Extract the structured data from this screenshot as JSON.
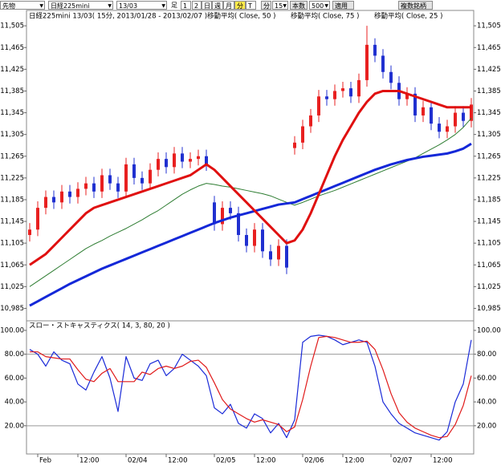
{
  "toolbar": {
    "items": [
      "先物",
      "日経225mini",
      "13/03",
      "足",
      "1",
      "2",
      "日",
      "週",
      "月",
      "分",
      "T",
      "分",
      "15",
      "本数",
      "500",
      "適用",
      "複数銘柄"
    ]
  },
  "chart_data": [
    {
      "type": "candlestick",
      "title": "日経225mini 13/03( 15分, 2013/01/28 - 2013/02/07 )",
      "open": [
        11120,
        11130,
        11170,
        11190,
        11180,
        11200,
        11190,
        11205,
        11215,
        11200,
        11230,
        11215,
        11200,
        11250,
        11225,
        11215,
        11240,
        11260,
        11245,
        11270,
        11255,
        11260,
        11265,
        11180,
        11140,
        11170,
        11160,
        11120,
        11100,
        11130,
        11090,
        11075,
        11100,
        11280,
        11290,
        11320,
        11340,
        11375,
        11370,
        11385,
        11390,
        11375,
        11405,
        11470,
        11450,
        11420,
        11400,
        11370,
        11380,
        11340,
        11355,
        11325,
        11310,
        11320,
        11345,
        11330
      ],
      "high": [
        11142,
        11182,
        11202,
        11202,
        11212,
        11212,
        11217,
        11227,
        11227,
        11242,
        11242,
        11227,
        11262,
        11262,
        11237,
        11252,
        11272,
        11272,
        11282,
        11282,
        11272,
        11277,
        11277,
        11192,
        11182,
        11182,
        11172,
        11132,
        11142,
        11142,
        11102,
        11112,
        11112,
        11302,
        11332,
        11352,
        11387,
        11387,
        11397,
        11402,
        11402,
        11417,
        11505,
        11482,
        11462,
        11432,
        11412,
        11392,
        11392,
        11367,
        11367,
        11337,
        11332,
        11357,
        11357,
        11372
      ],
      "low": [
        11108,
        11118,
        11158,
        11168,
        11168,
        11178,
        11178,
        11193,
        11188,
        11188,
        11203,
        11188,
        11188,
        11213,
        11203,
        11203,
        11228,
        11233,
        11233,
        11243,
        11243,
        11248,
        11238,
        11128,
        11128,
        11148,
        11108,
        11088,
        11088,
        11078,
        11063,
        11063,
        11048,
        11268,
        11278,
        11308,
        11328,
        11358,
        11358,
        11373,
        11363,
        11363,
        11393,
        11438,
        11408,
        11388,
        11358,
        11358,
        11328,
        11328,
        11313,
        11298,
        11298,
        11308,
        11318,
        11318
      ],
      "close": [
        11130,
        11170,
        11190,
        11180,
        11200,
        11190,
        11205,
        11215,
        11200,
        11230,
        11215,
        11200,
        11250,
        11225,
        11215,
        11240,
        11260,
        11245,
        11270,
        11255,
        11260,
        11265,
        11250,
        11140,
        11170,
        11160,
        11120,
        11100,
        11130,
        11090,
        11075,
        11100,
        11060,
        11290,
        11320,
        11340,
        11375,
        11370,
        11385,
        11390,
        11375,
        11405,
        11470,
        11450,
        11420,
        11400,
        11370,
        11380,
        11340,
        11355,
        11325,
        11310,
        11320,
        11345,
        11330,
        11360
      ],
      "up_color": "#e82020",
      "down_color": "#2030d0",
      "series": [
        {
          "name": "移動平均( Close, 50 )",
          "color": "#2e7d32",
          "width": 1,
          "values": [
            11025,
            11035,
            11045,
            11055,
            11065,
            11075,
            11085,
            11095,
            11103,
            11110,
            11118,
            11125,
            11132,
            11140,
            11148,
            11157,
            11165,
            11175,
            11185,
            11195,
            11203,
            11210,
            11215,
            11213,
            11210,
            11208,
            11205,
            11202,
            11199,
            11196,
            11192,
            11186,
            11180,
            11175,
            11180,
            11186,
            11192,
            11197,
            11202,
            11208,
            11214,
            11220,
            11226,
            11232,
            11238,
            11244,
            11250,
            11256,
            11262,
            11270,
            11278,
            11286,
            11295,
            11305,
            11318,
            11335
          ]
        },
        {
          "name": "移動平均( Close, 75 )",
          "color": "#1428d8",
          "width": 3,
          "values": [
            10990,
            10998,
            11006,
            11014,
            11022,
            11030,
            11037,
            11044,
            11051,
            11058,
            11064,
            11070,
            11076,
            11082,
            11088,
            11094,
            11100,
            11106,
            11112,
            11118,
            11124,
            11130,
            11136,
            11142,
            11147,
            11152,
            11156,
            11160,
            11164,
            11168,
            11172,
            11176,
            11178,
            11180,
            11186,
            11192,
            11198,
            11204,
            11210,
            11216,
            11222,
            11228,
            11234,
            11240,
            11245,
            11250,
            11254,
            11258,
            11261,
            11264,
            11266,
            11268,
            11270,
            11274,
            11279,
            11288
          ]
        },
        {
          "name": "移動平均( Close, 25 )",
          "color": "#e01010",
          "width": 3,
          "values": [
            11065,
            11075,
            11085,
            11100,
            11115,
            11130,
            11145,
            11160,
            11170,
            11175,
            11180,
            11185,
            11190,
            11195,
            11200,
            11205,
            11210,
            11215,
            11220,
            11225,
            11230,
            11240,
            11250,
            11240,
            11225,
            11210,
            11195,
            11180,
            11165,
            11150,
            11135,
            11120,
            11105,
            11110,
            11130,
            11160,
            11195,
            11230,
            11265,
            11295,
            11320,
            11345,
            11365,
            11380,
            11385,
            11385,
            11385,
            11380,
            11375,
            11370,
            11365,
            11360,
            11355,
            11355,
            11355,
            11355
          ]
        }
      ],
      "ylim": [
        10965,
        11520
      ],
      "yticks": [
        {
          "value": 11505,
          "label": "11,505"
        },
        {
          "value": 11465,
          "label": "11,465"
        },
        {
          "value": 11425,
          "label": "11,425"
        },
        {
          "value": 11385,
          "label": "11,385"
        },
        {
          "value": 11345,
          "label": "11,345"
        },
        {
          "value": 11305,
          "label": "11,305"
        },
        {
          "value": 11265,
          "label": "11,265"
        },
        {
          "value": 11225,
          "label": "11,225"
        },
        {
          "value": 11185,
          "label": "11,185"
        },
        {
          "value": 11145,
          "label": "11,145"
        },
        {
          "value": 11105,
          "label": "11,105"
        },
        {
          "value": 11065,
          "label": "11,065"
        },
        {
          "value": 11025,
          "label": "11,025"
        },
        {
          "value": 10985,
          "label": "10,985"
        }
      ]
    },
    {
      "type": "line",
      "title": "スロー・ストキャスティクス( 14, 3, 80, 20 )",
      "categories": [
        null,
        "Feb",
        null,
        null,
        null,
        null,
        "12:00",
        null,
        null,
        null,
        null,
        null,
        "02/04",
        null,
        null,
        null,
        null,
        "12:00",
        null,
        null,
        null,
        null,
        null,
        "02/05",
        null,
        null,
        null,
        null,
        "12:00",
        null,
        null,
        null,
        null,
        null,
        "02/06",
        null,
        null,
        null,
        null,
        "12:00",
        null,
        null,
        null,
        null,
        null,
        "02/07",
        null,
        null,
        null,
        null,
        "12:00",
        null,
        null,
        null,
        null,
        null
      ],
      "series": [
        {
          "color": "#1a2ad8",
          "values": [
            84,
            80,
            70,
            82,
            75,
            72,
            55,
            50,
            65,
            78,
            60,
            32,
            78,
            60,
            58,
            72,
            75,
            62,
            68,
            80,
            75,
            70,
            62,
            35,
            30,
            38,
            22,
            18,
            30,
            26,
            14,
            22,
            10,
            25,
            90,
            95,
            96,
            95,
            92,
            88,
            90,
            92,
            90,
            70,
            40,
            30,
            22,
            18,
            14,
            12,
            10,
            8,
            15,
            40,
            55,
            92
          ]
        },
        {
          "color": "#e01a1a",
          "values": [
            82,
            82,
            78,
            77,
            76,
            76,
            67,
            59,
            57,
            64,
            68,
            57,
            57,
            57,
            65,
            63,
            68,
            70,
            68,
            70,
            74,
            75,
            69,
            56,
            42,
            34,
            30,
            26,
            23,
            25,
            23,
            21,
            15,
            19,
            42,
            70,
            94,
            95,
            94,
            92,
            90,
            90,
            91,
            84,
            67,
            47,
            31,
            23,
            18,
            15,
            12,
            10,
            11,
            21,
            37,
            62
          ]
        }
      ],
      "reference_lines": [
        80,
        20
      ],
      "ylim": [
        -3,
        106
      ],
      "yticks": [
        {
          "value": 100,
          "label": "100.00"
        },
        {
          "value": 80,
          "label": "80.00"
        },
        {
          "value": 60,
          "label": "60.00"
        },
        {
          "value": 40,
          "label": "40.00"
        },
        {
          "value": 20,
          "label": "20.00"
        }
      ]
    }
  ]
}
